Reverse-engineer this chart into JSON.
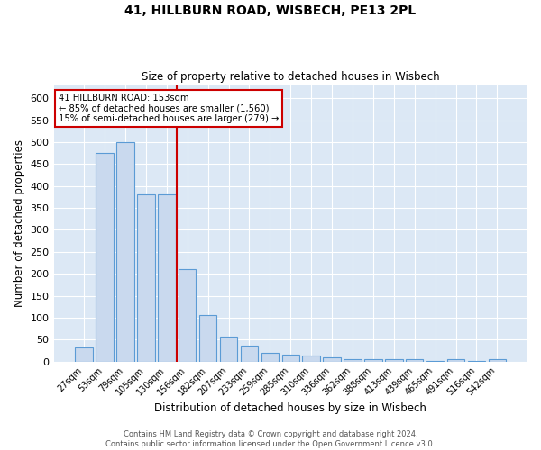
{
  "title1": "41, HILLBURN ROAD, WISBECH, PE13 2PL",
  "title2": "Size of property relative to detached houses in Wisbech",
  "xlabel": "Distribution of detached houses by size in Wisbech",
  "ylabel": "Number of detached properties",
  "bar_labels": [
    "27sqm",
    "53sqm",
    "79sqm",
    "105sqm",
    "130sqm",
    "156sqm",
    "182sqm",
    "207sqm",
    "233sqm",
    "259sqm",
    "285sqm",
    "310sqm",
    "336sqm",
    "362sqm",
    "388sqm",
    "413sqm",
    "439sqm",
    "465sqm",
    "491sqm",
    "516sqm",
    "542sqm"
  ],
  "bar_values": [
    33,
    475,
    500,
    380,
    380,
    210,
    105,
    57,
    37,
    20,
    15,
    14,
    9,
    5,
    5,
    5,
    5,
    1,
    5,
    1,
    5
  ],
  "bar_color": "#c9d9ee",
  "bar_edge_color": "#5b9bd5",
  "vline_color": "#cc0000",
  "annotation_text": "41 HILLBURN ROAD: 153sqm\n← 85% of detached houses are smaller (1,560)\n15% of semi-detached houses are larger (279) →",
  "annotation_box_color": "white",
  "annotation_box_edge": "#cc0000",
  "ylim": [
    0,
    630
  ],
  "yticks": [
    0,
    50,
    100,
    150,
    200,
    250,
    300,
    350,
    400,
    450,
    500,
    550,
    600
  ],
  "background_color": "#dce8f5",
  "grid_color": "#ffffff",
  "footer": "Contains HM Land Registry data © Crown copyright and database right 2024.\nContains public sector information licensed under the Open Government Licence v3.0."
}
